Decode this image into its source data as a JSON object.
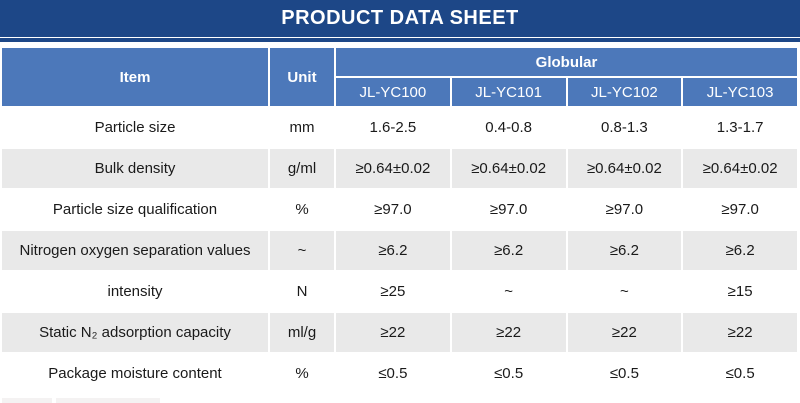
{
  "banner": {
    "title": "PRODUCT DATA SHEET"
  },
  "table": {
    "header": {
      "item": "Item",
      "unit": "Unit",
      "group": "Globular",
      "models": [
        "JL-YC100",
        "JL-YC101",
        "JL-YC102",
        "JL-YC103"
      ]
    },
    "rows": [
      {
        "item": "Particle size",
        "unit": "mm",
        "values": [
          "1.6-2.5",
          "0.4-0.8",
          "0.8-1.3",
          "1.3-1.7"
        ]
      },
      {
        "item": "Bulk density",
        "unit": "g/ml",
        "values": [
          "≥0.64±0.02",
          "≥0.64±0.02",
          "≥0.64±0.02",
          "≥0.64±0.02"
        ]
      },
      {
        "item": "Particle size qualification",
        "unit": "%",
        "values": [
          "≥97.0",
          "≥97.0",
          "≥97.0",
          "≥97.0"
        ]
      },
      {
        "item": "Nitrogen oxygen separation values",
        "unit": "~",
        "values": [
          "≥6.2",
          "≥6.2",
          "≥6.2",
          "≥6.2"
        ]
      },
      {
        "item": "intensity",
        "unit": "N",
        "values": [
          "≥25",
          "~",
          "~",
          "≥15"
        ]
      },
      {
        "item": "Static N₂ adsorption capacity",
        "unit": "ml/g",
        "values": [
          "≥22",
          "≥22",
          "≥22",
          "≥22"
        ]
      },
      {
        "item": "Package moisture content",
        "unit": "%",
        "values": [
          "≤0.5",
          "≤0.5",
          "≤0.5",
          "≤0.5"
        ]
      }
    ]
  },
  "colors": {
    "banner": "#1d4787",
    "header_cell": "#4c78ba",
    "row_alt": "#e9e9e9",
    "header_text": "#ffffff",
    "body_text": "#1a1a1a"
  }
}
